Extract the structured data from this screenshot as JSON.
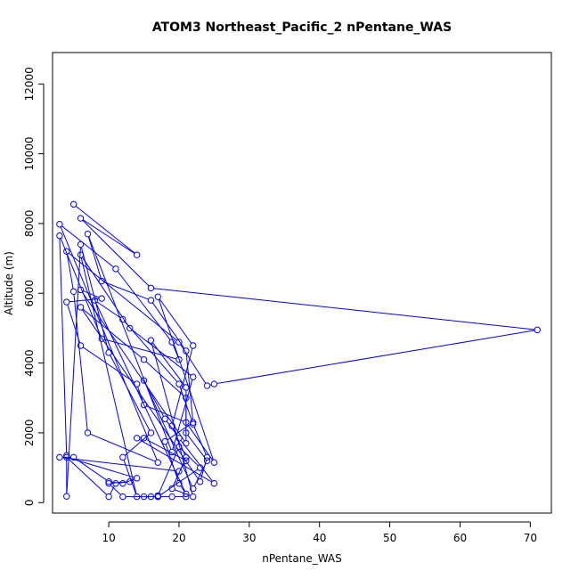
{
  "chart_data": {
    "type": "line",
    "title": "ATOM3 Northeast_Pacific_2 nPentane_WAS",
    "xlabel": "nPentane_WAS",
    "ylabel": "Altitude (m)",
    "xlim": [
      2,
      73
    ],
    "ylim": [
      -300,
      12900
    ],
    "xticks": [
      10,
      20,
      30,
      40,
      50,
      60,
      70
    ],
    "yticks": [
      0,
      2000,
      4000,
      6000,
      8000,
      10000,
      12000
    ],
    "grid": false,
    "line_color": "#0000ff",
    "marker": "open-circle",
    "series": [
      {
        "points": [
          [
            5,
            8550
          ],
          [
            14,
            7100
          ],
          [
            6,
            8150
          ],
          [
            16,
            6150
          ],
          [
            71,
            4950
          ],
          [
            25,
            3400
          ],
          [
            24,
            3350
          ],
          [
            20,
            4600
          ],
          [
            4,
            7200
          ],
          [
            5,
            6050
          ],
          [
            7,
            2000
          ],
          [
            17,
            1150
          ],
          [
            3,
            7980
          ],
          [
            11,
            6700
          ],
          [
            19,
            4600
          ],
          [
            20,
            4100
          ],
          [
            9,
            4700
          ],
          [
            3,
            7650
          ],
          [
            4,
            1350
          ],
          [
            4,
            180
          ],
          [
            6,
            7400
          ],
          [
            10,
            4300
          ],
          [
            16,
            2000
          ],
          [
            12,
            1300
          ],
          [
            14,
            170
          ],
          [
            6,
            7100
          ],
          [
            13,
            5000
          ],
          [
            22,
            3600
          ],
          [
            19,
            1450
          ],
          [
            7,
            7700
          ],
          [
            9,
            6350
          ],
          [
            16,
            5800
          ],
          [
            21,
            4350
          ],
          [
            22,
            2300
          ],
          [
            18,
            1750
          ],
          [
            20,
            550
          ],
          [
            21,
            250
          ],
          [
            8,
            5800
          ],
          [
            12,
            5250
          ],
          [
            20,
            3400
          ],
          [
            22,
            2250
          ],
          [
            24,
            1300
          ],
          [
            23,
            600
          ],
          [
            6,
            5600
          ],
          [
            15,
            4100
          ],
          [
            21,
            3000
          ],
          [
            21,
            1700
          ],
          [
            6,
            6100
          ],
          [
            9,
            5850
          ],
          [
            4,
            5750
          ],
          [
            6,
            4500
          ],
          [
            14,
            3400
          ],
          [
            15,
            2800
          ],
          [
            21,
            2300
          ],
          [
            25,
            1150
          ],
          [
            17,
            5900
          ],
          [
            22,
            4500
          ],
          [
            19,
            2200
          ],
          [
            21,
            1300
          ],
          [
            19,
            400
          ],
          [
            22,
            170
          ],
          [
            16,
            4650
          ],
          [
            21,
            3300
          ],
          [
            21,
            2000
          ],
          [
            24,
            1200
          ],
          [
            22,
            400
          ],
          [
            15,
            3500
          ],
          [
            18,
            2400
          ],
          [
            20,
            1850
          ],
          [
            25,
            550
          ],
          [
            14,
            1850
          ],
          [
            15,
            1850
          ],
          [
            21,
            1200
          ],
          [
            20,
            900
          ],
          [
            3,
            1300
          ],
          [
            5,
            1300
          ],
          [
            10,
            600
          ],
          [
            12,
            550
          ],
          [
            14,
            700
          ],
          [
            4,
            1300
          ],
          [
            10,
            170
          ],
          [
            11,
            550
          ],
          [
            13,
            600
          ],
          [
            10,
            550
          ],
          [
            12,
            170
          ],
          [
            16,
            170
          ],
          [
            15,
            170
          ],
          [
            17,
            170
          ],
          [
            17,
            200
          ],
          [
            20,
            1600
          ],
          [
            23,
            1000
          ],
          [
            17,
            170
          ],
          [
            19,
            170
          ],
          [
            21,
            170
          ]
        ]
      }
    ]
  }
}
